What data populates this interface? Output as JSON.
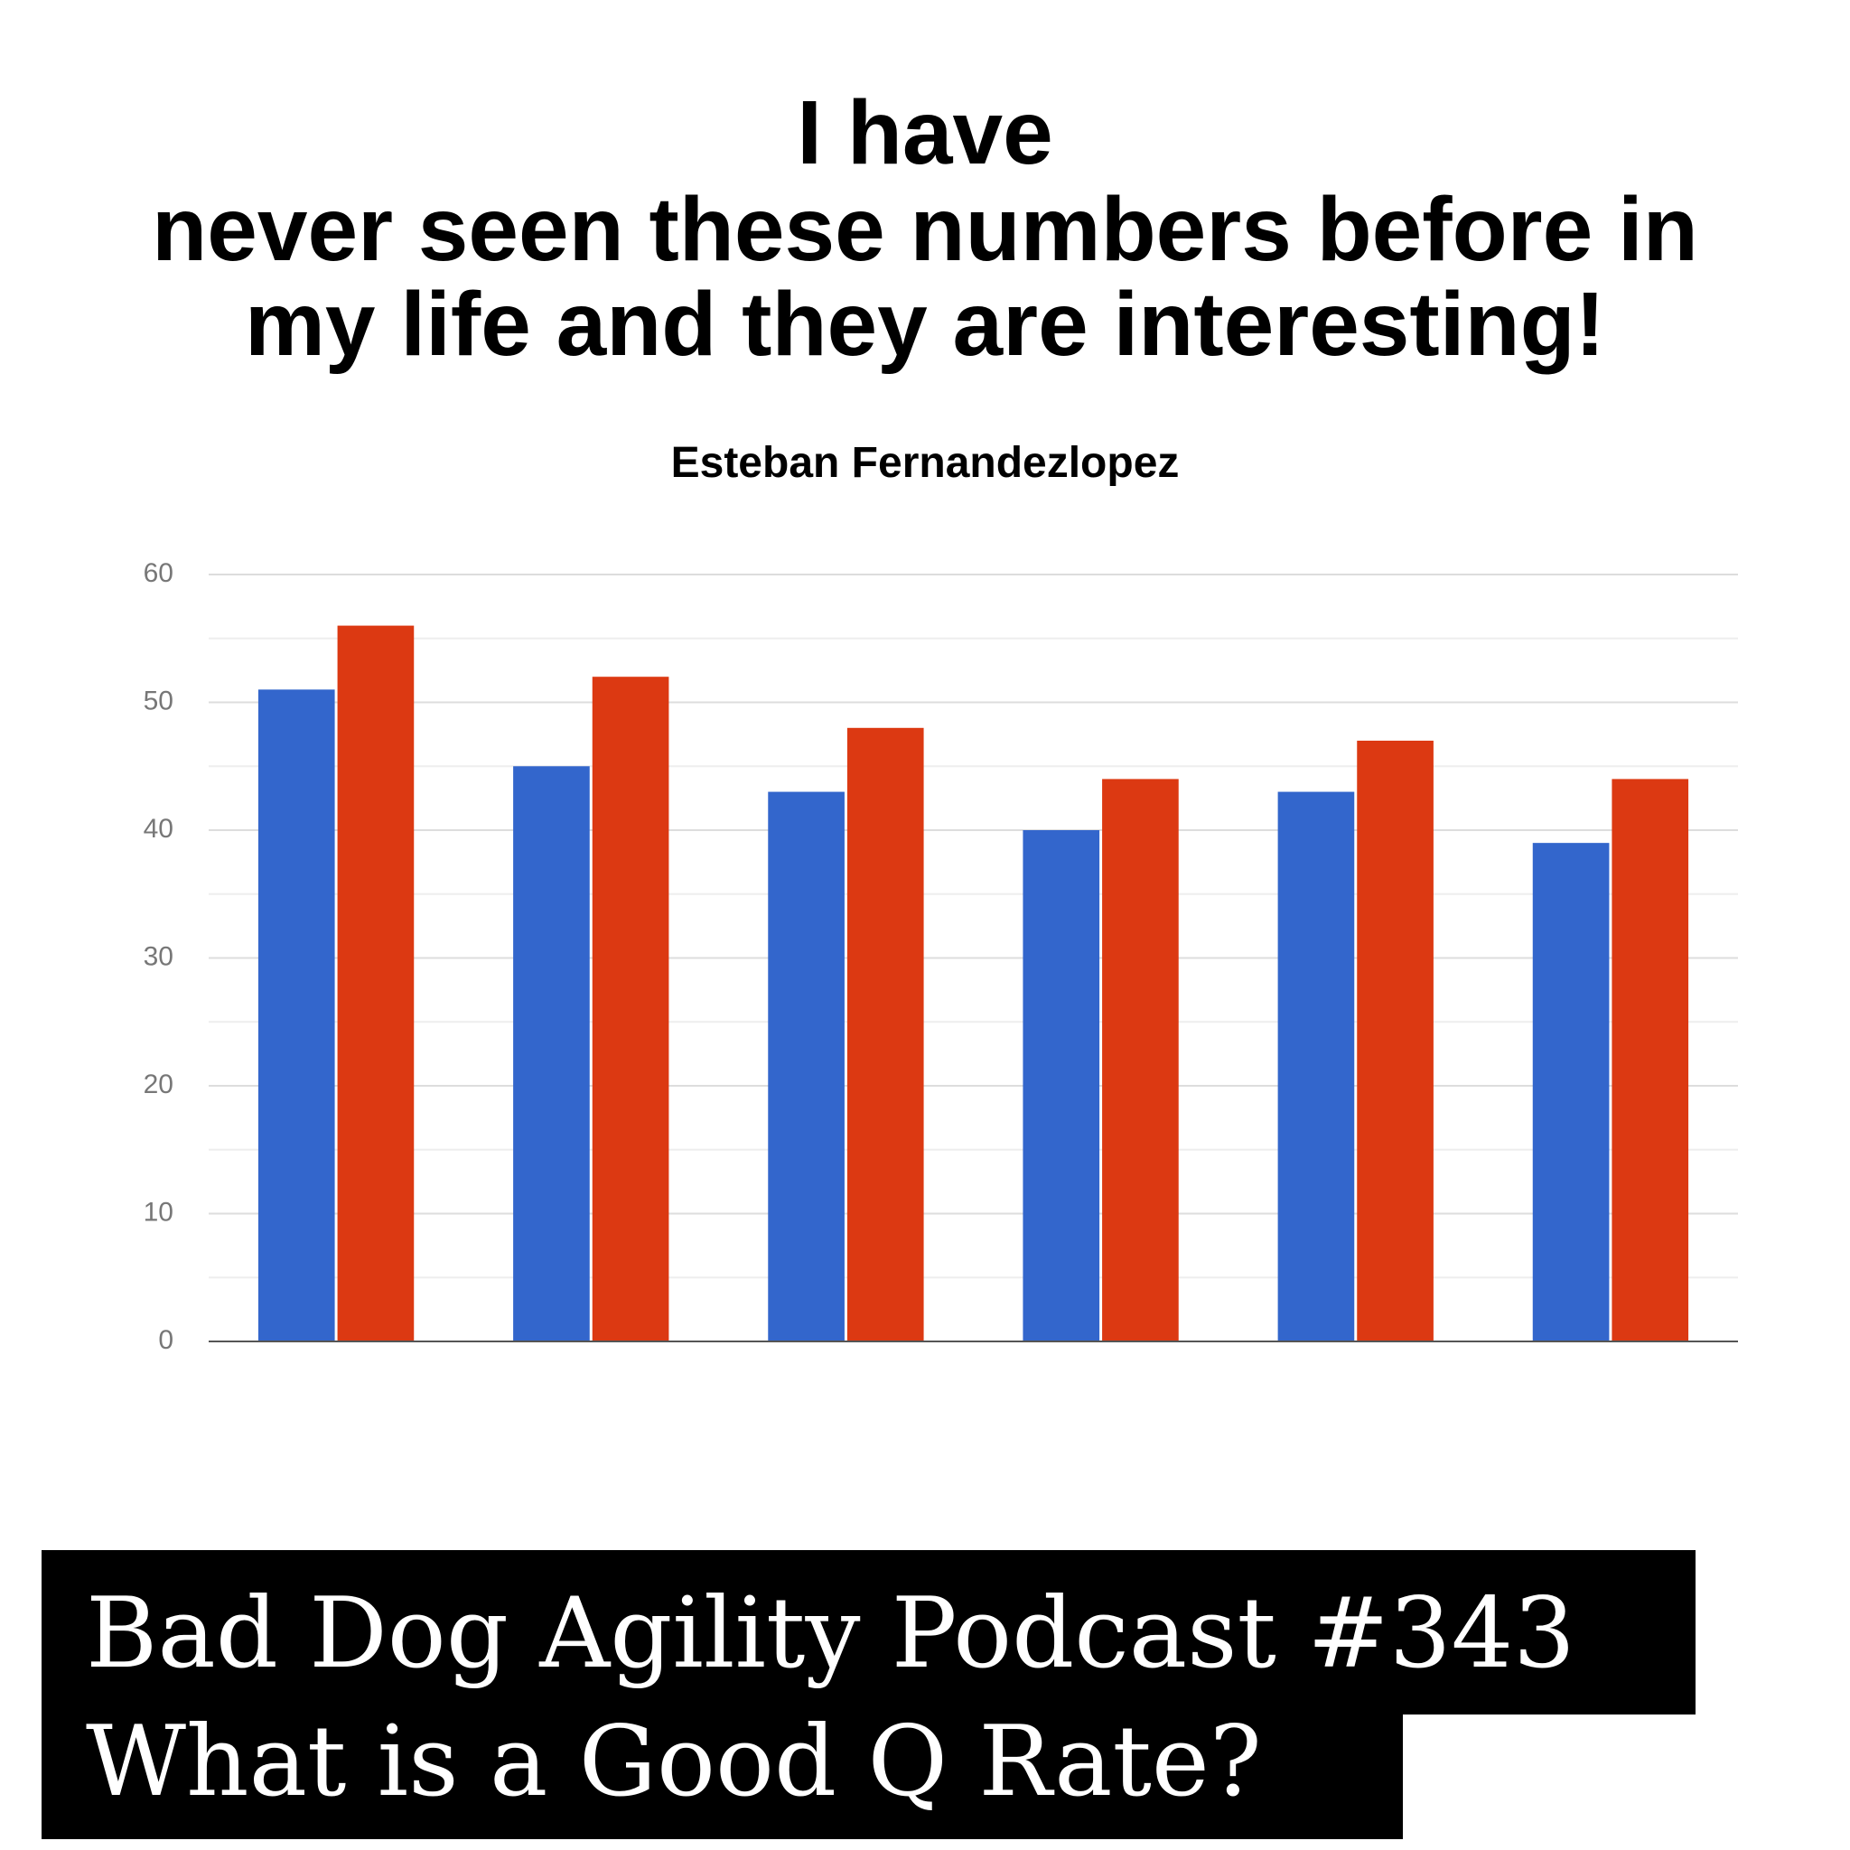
{
  "header": {
    "title_lines": [
      "I have",
      "never seen these numbers before in",
      "my life and they are interesting!"
    ],
    "subtitle": "Esteban Fernandezlopez"
  },
  "chart_data": {
    "type": "bar",
    "categories": [
      null,
      null,
      null,
      null,
      null,
      null
    ],
    "series": [
      {
        "color": "#3366cc",
        "values": [
          51,
          45,
          43,
          40,
          43,
          39
        ]
      },
      {
        "color": "#dc3912",
        "values": [
          56,
          52,
          48,
          44,
          47,
          44
        ]
      }
    ],
    "ylim": [
      0,
      60
    ],
    "yticks": [
      0,
      10,
      20,
      30,
      40,
      50,
      60
    ],
    "grid": true
  },
  "footer": {
    "lines": [
      "Bad Dog Agility Podcast #343",
      "What is a Good Q Rate?"
    ]
  }
}
